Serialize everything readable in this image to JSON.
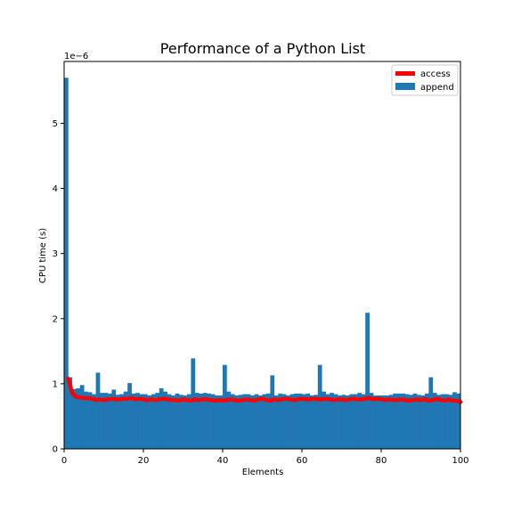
{
  "chart_data": {
    "type": "bar",
    "title": "Performance of a Python List",
    "xlabel": "Elements",
    "ylabel": "CPU time (s)",
    "y_offset_text": "1e−6",
    "xlim": [
      0,
      100
    ],
    "ylim": [
      0,
      5.95
    ],
    "x_ticks": [
      0,
      20,
      40,
      60,
      80,
      100
    ],
    "x_tick_labels": [
      "0",
      "20",
      "40",
      "60",
      "80",
      "100"
    ],
    "y_ticks": [
      0,
      1,
      2,
      3,
      4,
      5
    ],
    "y_tick_labels": [
      "0",
      "1",
      "2",
      "3",
      "4",
      "5"
    ],
    "legend_position": "top-right",
    "series": [
      {
        "name": "append",
        "kind": "bar",
        "color": "#1f77b4",
        "x": [
          1,
          2,
          3,
          4,
          5,
          6,
          7,
          8,
          9,
          10,
          11,
          12,
          13,
          14,
          15,
          16,
          17,
          18,
          19,
          20,
          21,
          22,
          23,
          24,
          25,
          26,
          27,
          28,
          29,
          30,
          31,
          32,
          33,
          34,
          35,
          36,
          37,
          38,
          39,
          40,
          41,
          42,
          43,
          44,
          45,
          46,
          47,
          48,
          49,
          50,
          51,
          52,
          53,
          54,
          55,
          56,
          57,
          58,
          59,
          60,
          61,
          62,
          63,
          64,
          65,
          66,
          67,
          68,
          69,
          70,
          71,
          72,
          73,
          74,
          75,
          76,
          77,
          78,
          79,
          80,
          81,
          82,
          83,
          84,
          85,
          86,
          87,
          88,
          89,
          90,
          91,
          92,
          93,
          94,
          95,
          96,
          97,
          98,
          99,
          100
        ],
        "values": [
          5.7,
          1.1,
          0.92,
          0.93,
          0.98,
          0.88,
          0.87,
          0.84,
          1.17,
          0.86,
          0.86,
          0.85,
          0.91,
          0.83,
          0.84,
          0.88,
          1.01,
          0.85,
          0.86,
          0.84,
          0.84,
          0.82,
          0.84,
          0.86,
          0.93,
          0.88,
          0.84,
          0.82,
          0.85,
          0.83,
          0.82,
          0.84,
          1.39,
          0.86,
          0.85,
          0.86,
          0.85,
          0.84,
          0.82,
          0.82,
          1.29,
          0.88,
          0.84,
          0.82,
          0.83,
          0.84,
          0.84,
          0.82,
          0.84,
          0.82,
          0.84,
          0.85,
          1.13,
          0.82,
          0.85,
          0.84,
          0.82,
          0.84,
          0.85,
          0.85,
          0.84,
          0.85,
          0.82,
          0.83,
          1.29,
          0.88,
          0.84,
          0.86,
          0.84,
          0.82,
          0.83,
          0.82,
          0.84,
          0.84,
          0.86,
          0.84,
          2.09,
          0.86,
          0.82,
          0.82,
          0.82,
          0.82,
          0.83,
          0.85,
          0.85,
          0.85,
          0.84,
          0.83,
          0.85,
          0.83,
          0.82,
          0.85,
          1.1,
          0.86,
          0.83,
          0.84,
          0.84,
          0.83,
          0.87,
          0.85
        ]
      },
      {
        "name": "access",
        "kind": "line",
        "color": "#ff0000",
        "x": [
          1,
          2,
          3,
          4,
          5,
          6,
          7,
          8,
          9,
          10,
          11,
          12,
          13,
          14,
          15,
          16,
          17,
          18,
          19,
          20,
          21,
          22,
          23,
          24,
          25,
          26,
          27,
          28,
          29,
          30,
          31,
          32,
          33,
          34,
          35,
          36,
          37,
          38,
          39,
          40,
          41,
          42,
          43,
          44,
          45,
          46,
          47,
          48,
          49,
          50,
          51,
          52,
          53,
          54,
          55,
          56,
          57,
          58,
          59,
          60,
          61,
          62,
          63,
          64,
          65,
          66,
          67,
          68,
          69,
          70,
          71,
          72,
          73,
          74,
          75,
          76,
          77,
          78,
          79,
          80,
          81,
          82,
          83,
          84,
          85,
          86,
          87,
          88,
          89,
          90,
          91,
          92,
          93,
          94,
          95,
          96,
          97,
          98,
          99,
          100
        ],
        "values": [
          1.08,
          0.86,
          0.8,
          0.79,
          0.78,
          0.78,
          0.77,
          0.75,
          0.76,
          0.75,
          0.76,
          0.77,
          0.76,
          0.76,
          0.77,
          0.77,
          0.78,
          0.76,
          0.77,
          0.76,
          0.75,
          0.76,
          0.75,
          0.76,
          0.77,
          0.76,
          0.75,
          0.75,
          0.74,
          0.76,
          0.75,
          0.74,
          0.76,
          0.75,
          0.76,
          0.76,
          0.75,
          0.74,
          0.75,
          0.74,
          0.75,
          0.76,
          0.75,
          0.74,
          0.75,
          0.76,
          0.75,
          0.74,
          0.76,
          0.77,
          0.75,
          0.74,
          0.76,
          0.75,
          0.76,
          0.77,
          0.76,
          0.75,
          0.76,
          0.77,
          0.76,
          0.76,
          0.77,
          0.76,
          0.76,
          0.77,
          0.76,
          0.75,
          0.76,
          0.76,
          0.75,
          0.76,
          0.77,
          0.76,
          0.76,
          0.77,
          0.78,
          0.76,
          0.77,
          0.76,
          0.75,
          0.76,
          0.75,
          0.75,
          0.76,
          0.75,
          0.74,
          0.75,
          0.76,
          0.75,
          0.76,
          0.74,
          0.75,
          0.77,
          0.75,
          0.74,
          0.76,
          0.74,
          0.74,
          0.72
        ]
      }
    ]
  }
}
